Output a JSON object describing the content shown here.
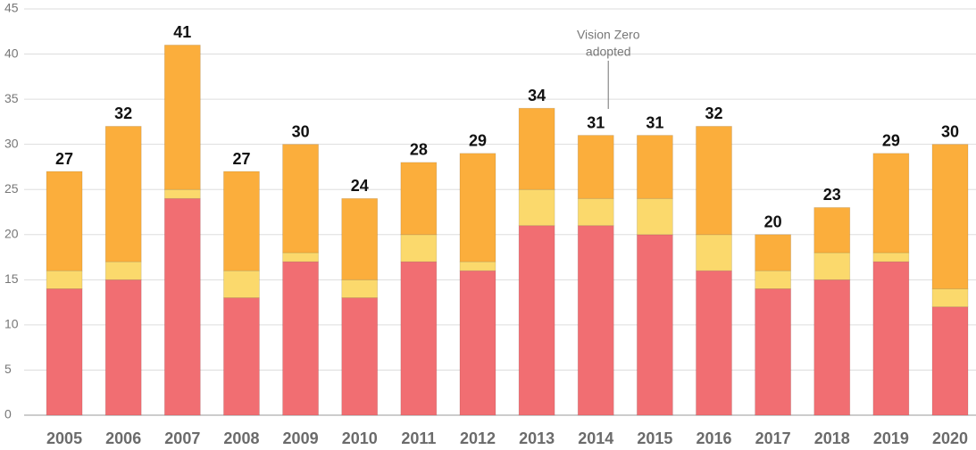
{
  "chart_data": {
    "type": "stacked-bar",
    "categories": [
      "2005",
      "2006",
      "2007",
      "2008",
      "2009",
      "2010",
      "2011",
      "2012",
      "2013",
      "2014",
      "2015",
      "2016",
      "2017",
      "2018",
      "2019",
      "2020"
    ],
    "series": [
      {
        "color": "#f16e72",
        "values": [
          14,
          15,
          24,
          13,
          17,
          13,
          17,
          16,
          21,
          21,
          20,
          16,
          14,
          15,
          17,
          12
        ]
      },
      {
        "color": "#fbd96c",
        "values": [
          2,
          2,
          1,
          3,
          1,
          2,
          3,
          1,
          4,
          3,
          4,
          4,
          2,
          3,
          1,
          2
        ]
      },
      {
        "color": "#fbae3c",
        "values": [
          11,
          15,
          16,
          11,
          12,
          9,
          8,
          12,
          9,
          7,
          7,
          12,
          4,
          5,
          11,
          16
        ]
      }
    ],
    "totals": [
      27,
      32,
      41,
      27,
      30,
      24,
      28,
      29,
      34,
      31,
      31,
      32,
      20,
      23,
      29,
      30
    ],
    "annotation": {
      "lines": [
        "Vision Zero",
        "adopted"
      ],
      "category": "2014"
    },
    "ylim": [
      0,
      45
    ],
    "yticks": [
      0,
      5,
      10,
      15,
      20,
      25,
      30,
      35,
      40,
      45
    ],
    "grid": true
  }
}
